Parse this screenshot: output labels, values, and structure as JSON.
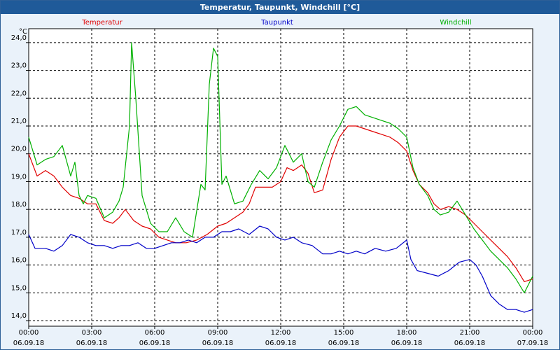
{
  "window": {
    "title": "Temperatur, Taupunkt, Windchill [°C]"
  },
  "chart_data": {
    "type": "line",
    "title": "Temperatur, Taupunkt, Windchill [°C]",
    "ylabel": "°C",
    "ylim": [
      13.8,
      24.5
    ],
    "xlim_hours": [
      0,
      24
    ],
    "yticks": [
      "24,0",
      "23,0",
      "22,0",
      "21,0",
      "20,0",
      "19,0",
      "18,0",
      "17,0",
      "16,0",
      "15,0",
      "14,0"
    ],
    "xticks": [
      {
        "time": "00:00",
        "date": "06.09.18"
      },
      {
        "time": "03:00",
        "date": "06.09.18"
      },
      {
        "time": "06:00",
        "date": "06.09.18"
      },
      {
        "time": "09:00",
        "date": "06.09.18"
      },
      {
        "time": "12:00",
        "date": "06.09.18"
      },
      {
        "time": "15:00",
        "date": "06.09.18"
      },
      {
        "time": "18:00",
        "date": "06.09.18"
      },
      {
        "time": "21:00",
        "date": "06.09.18"
      },
      {
        "time": "00:00",
        "date": "07.09.18"
      }
    ],
    "grid": true,
    "series": [
      {
        "name": "Temperatur",
        "color": "#e00000",
        "points": [
          [
            0,
            20.0
          ],
          [
            0.4,
            19.2
          ],
          [
            0.8,
            19.4
          ],
          [
            1.2,
            19.2
          ],
          [
            1.6,
            18.8
          ],
          [
            2.0,
            18.5
          ],
          [
            2.4,
            18.4
          ],
          [
            2.8,
            18.2
          ],
          [
            3.2,
            18.2
          ],
          [
            3.6,
            17.6
          ],
          [
            4.0,
            17.5
          ],
          [
            4.3,
            17.7
          ],
          [
            4.6,
            18.0
          ],
          [
            5.0,
            17.6
          ],
          [
            5.4,
            17.4
          ],
          [
            5.8,
            17.3
          ],
          [
            6.2,
            17.0
          ],
          [
            6.6,
            16.9
          ],
          [
            7.0,
            16.8
          ],
          [
            7.5,
            16.8
          ],
          [
            8.0,
            16.9
          ],
          [
            8.5,
            17.1
          ],
          [
            9.0,
            17.4
          ],
          [
            9.4,
            17.5
          ],
          [
            9.8,
            17.7
          ],
          [
            10.2,
            17.9
          ],
          [
            10.5,
            18.2
          ],
          [
            10.8,
            18.8
          ],
          [
            11.2,
            18.8
          ],
          [
            11.6,
            18.8
          ],
          [
            12.0,
            19.0
          ],
          [
            12.3,
            19.5
          ],
          [
            12.6,
            19.4
          ],
          [
            13.0,
            19.6
          ],
          [
            13.3,
            19.3
          ],
          [
            13.6,
            18.6
          ],
          [
            14.0,
            18.7
          ],
          [
            14.4,
            19.8
          ],
          [
            14.8,
            20.6
          ],
          [
            15.2,
            21.0
          ],
          [
            15.6,
            21.0
          ],
          [
            16.0,
            20.9
          ],
          [
            16.4,
            20.8
          ],
          [
            16.8,
            20.7
          ],
          [
            17.2,
            20.6
          ],
          [
            17.6,
            20.4
          ],
          [
            18.0,
            20.1
          ],
          [
            18.3,
            19.4
          ],
          [
            18.6,
            18.9
          ],
          [
            19.0,
            18.6
          ],
          [
            19.3,
            18.2
          ],
          [
            19.6,
            18.0
          ],
          [
            20.0,
            18.1
          ],
          [
            20.4,
            18.0
          ],
          [
            20.8,
            17.8
          ],
          [
            21.2,
            17.5
          ],
          [
            21.6,
            17.2
          ],
          [
            22.0,
            16.9
          ],
          [
            22.4,
            16.6
          ],
          [
            22.8,
            16.3
          ],
          [
            23.2,
            15.9
          ],
          [
            23.6,
            15.4
          ],
          [
            24.0,
            15.5
          ]
        ]
      },
      {
        "name": "Taupunkt",
        "color": "#0000c8",
        "points": [
          [
            0,
            17.1
          ],
          [
            0.3,
            16.6
          ],
          [
            0.8,
            16.6
          ],
          [
            1.2,
            16.5
          ],
          [
            1.6,
            16.7
          ],
          [
            2.0,
            17.1
          ],
          [
            2.4,
            17.0
          ],
          [
            2.8,
            16.8
          ],
          [
            3.2,
            16.7
          ],
          [
            3.6,
            16.7
          ],
          [
            4.0,
            16.6
          ],
          [
            4.4,
            16.7
          ],
          [
            4.8,
            16.7
          ],
          [
            5.2,
            16.8
          ],
          [
            5.6,
            16.6
          ],
          [
            6.0,
            16.6
          ],
          [
            6.4,
            16.7
          ],
          [
            6.8,
            16.8
          ],
          [
            7.2,
            16.8
          ],
          [
            7.6,
            16.9
          ],
          [
            8.0,
            16.8
          ],
          [
            8.4,
            17.0
          ],
          [
            8.8,
            17.0
          ],
          [
            9.2,
            17.2
          ],
          [
            9.6,
            17.2
          ],
          [
            10.0,
            17.3
          ],
          [
            10.5,
            17.1
          ],
          [
            11.0,
            17.4
          ],
          [
            11.4,
            17.3
          ],
          [
            11.8,
            17.0
          ],
          [
            12.2,
            16.9
          ],
          [
            12.6,
            17.0
          ],
          [
            13.0,
            16.8
          ],
          [
            13.5,
            16.7
          ],
          [
            14.0,
            16.4
          ],
          [
            14.4,
            16.4
          ],
          [
            14.8,
            16.5
          ],
          [
            15.2,
            16.4
          ],
          [
            15.6,
            16.5
          ],
          [
            16.0,
            16.4
          ],
          [
            16.5,
            16.6
          ],
          [
            17.0,
            16.5
          ],
          [
            17.5,
            16.6
          ],
          [
            18.0,
            16.9
          ],
          [
            18.2,
            16.2
          ],
          [
            18.5,
            15.8
          ],
          [
            19.0,
            15.7
          ],
          [
            19.5,
            15.6
          ],
          [
            20.0,
            15.8
          ],
          [
            20.5,
            16.1
          ],
          [
            21.0,
            16.2
          ],
          [
            21.3,
            16.0
          ],
          [
            21.6,
            15.6
          ],
          [
            22.0,
            14.9
          ],
          [
            22.4,
            14.6
          ],
          [
            22.8,
            14.4
          ],
          [
            23.2,
            14.4
          ],
          [
            23.6,
            14.3
          ],
          [
            24.0,
            14.4
          ]
        ]
      },
      {
        "name": "Windchill",
        "color": "#00b000",
        "points": [
          [
            0,
            20.6
          ],
          [
            0.4,
            19.6
          ],
          [
            0.8,
            19.8
          ],
          [
            1.2,
            19.9
          ],
          [
            1.6,
            20.3
          ],
          [
            2.0,
            19.2
          ],
          [
            2.2,
            19.7
          ],
          [
            2.4,
            18.5
          ],
          [
            2.6,
            18.2
          ],
          [
            2.8,
            18.5
          ],
          [
            3.2,
            18.4
          ],
          [
            3.6,
            17.7
          ],
          [
            4.0,
            17.9
          ],
          [
            4.3,
            18.3
          ],
          [
            4.5,
            18.8
          ],
          [
            4.8,
            21.0
          ],
          [
            4.9,
            24.0
          ],
          [
            5.1,
            22.0
          ],
          [
            5.4,
            18.5
          ],
          [
            5.8,
            17.5
          ],
          [
            6.2,
            17.2
          ],
          [
            6.6,
            17.2
          ],
          [
            7.0,
            17.7
          ],
          [
            7.4,
            17.2
          ],
          [
            7.8,
            17.0
          ],
          [
            8.2,
            18.9
          ],
          [
            8.4,
            18.7
          ],
          [
            8.6,
            22.5
          ],
          [
            8.8,
            23.8
          ],
          [
            9.0,
            23.5
          ],
          [
            9.2,
            18.9
          ],
          [
            9.4,
            19.2
          ],
          [
            9.8,
            18.2
          ],
          [
            10.2,
            18.3
          ],
          [
            10.6,
            18.9
          ],
          [
            11.0,
            19.4
          ],
          [
            11.4,
            19.1
          ],
          [
            11.8,
            19.5
          ],
          [
            12.2,
            20.3
          ],
          [
            12.6,
            19.7
          ],
          [
            13.0,
            20.0
          ],
          [
            13.3,
            19.0
          ],
          [
            13.6,
            18.8
          ],
          [
            14.0,
            19.7
          ],
          [
            14.4,
            20.5
          ],
          [
            14.8,
            21.0
          ],
          [
            15.2,
            21.6
          ],
          [
            15.6,
            21.7
          ],
          [
            16.0,
            21.4
          ],
          [
            16.4,
            21.3
          ],
          [
            16.8,
            21.2
          ],
          [
            17.2,
            21.1
          ],
          [
            17.6,
            20.9
          ],
          [
            18.0,
            20.6
          ],
          [
            18.3,
            19.5
          ],
          [
            18.6,
            18.9
          ],
          [
            19.0,
            18.5
          ],
          [
            19.3,
            18.0
          ],
          [
            19.6,
            17.8
          ],
          [
            20.0,
            17.9
          ],
          [
            20.4,
            18.3
          ],
          [
            20.8,
            17.8
          ],
          [
            21.2,
            17.3
          ],
          [
            21.6,
            16.9
          ],
          [
            22.0,
            16.5
          ],
          [
            22.4,
            16.2
          ],
          [
            22.8,
            15.9
          ],
          [
            23.2,
            15.5
          ],
          [
            23.6,
            15.0
          ],
          [
            24.0,
            15.6
          ]
        ]
      }
    ]
  }
}
